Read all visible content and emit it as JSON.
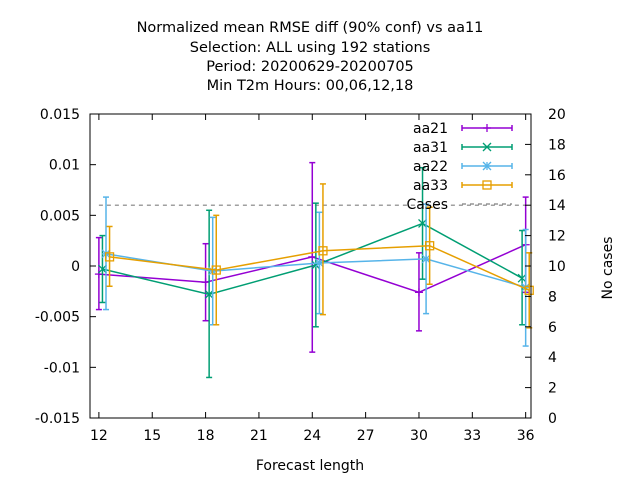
{
  "chart_data": {
    "type": "line",
    "title": [
      "Normalized mean RMSE diff (90% conf) vs aa11",
      "Selection: ALL using   192 stations",
      "Period: 20200629-20200705",
      "Min T2m   Hours:  00,06,12,18"
    ],
    "xlabel": "Forecast length",
    "ylabel": "",
    "y2label": "No cases",
    "xlim": [
      11.5,
      36.3
    ],
    "ylim": [
      -0.015,
      0.015
    ],
    "y2lim": [
      0,
      20
    ],
    "xticks": [
      12,
      15,
      18,
      21,
      24,
      27,
      30,
      33,
      36
    ],
    "xtick_labels": [
      "12",
      "15",
      "18",
      "21",
      "24",
      "27",
      "30",
      "33",
      "36"
    ],
    "yticks": [
      -0.015,
      -0.01,
      -0.005,
      0,
      0.005,
      0.01,
      0.015
    ],
    "ytick_labels": [
      "-0.015",
      "-0.01",
      "-0.005",
      "0",
      "0.005",
      "0.01",
      "0.015"
    ],
    "y2ticks": [
      0,
      2,
      4,
      6,
      8,
      10,
      12,
      14,
      16,
      18,
      20
    ],
    "y2tick_labels": [
      "0",
      "2",
      "4",
      "6",
      "8",
      "10",
      "12",
      "14",
      "16",
      "18",
      "20"
    ],
    "grid": false,
    "legend_position": "top-right",
    "series": [
      {
        "name": "aa21",
        "color": "#9400d3",
        "marker": "plus",
        "x": [
          12,
          18,
          24,
          30,
          36
        ],
        "y": [
          -0.0008,
          -0.0016,
          0.0009,
          -0.0026,
          0.0021
        ],
        "err_low": [
          -0.0043,
          -0.0054,
          -0.0085,
          -0.0064,
          -0.0026
        ],
        "err_high": [
          0.0028,
          0.0022,
          0.0102,
          0.0013,
          0.0068
        ]
      },
      {
        "name": "aa31",
        "color": "#009e73",
        "marker": "cross",
        "x": [
          12.2,
          18.2,
          24.2,
          30.2,
          35.8
        ],
        "y": [
          -0.0003,
          -0.0028,
          0.0001,
          0.0042,
          -0.0012
        ],
        "err_low": [
          -0.0036,
          -0.011,
          -0.006,
          -0.0013,
          -0.0058
        ],
        "err_high": [
          0.003,
          0.0055,
          0.0062,
          0.0097,
          0.0035
        ]
      },
      {
        "name": "aa22",
        "color": "#56b4e9",
        "marker": "star",
        "x": [
          12.4,
          18.4,
          24.4,
          30.4,
          36.0
        ],
        "y": [
          0.0012,
          -0.0005,
          0.0003,
          0.0007,
          -0.0021
        ],
        "err_low": [
          -0.0043,
          -0.0058,
          -0.0047,
          -0.0047,
          -0.0079
        ],
        "err_high": [
          0.0068,
          0.0048,
          0.0053,
          0.0061,
          0.0036
        ]
      },
      {
        "name": "aa33",
        "color": "#e69f00",
        "marker": "square",
        "x": [
          12.6,
          18.6,
          24.6,
          30.6,
          36.2
        ],
        "y": [
          0.0009,
          -0.0004,
          0.0015,
          0.002,
          -0.0024
        ],
        "err_low": [
          -0.002,
          -0.0058,
          -0.0048,
          -0.0018,
          -0.0061
        ],
        "err_high": [
          0.0039,
          0.005,
          0.0081,
          0.0058,
          0.0013
        ]
      }
    ],
    "cases": {
      "name": "Cases",
      "color": "#808080",
      "style": "dashed",
      "x": [
        12,
        18,
        24,
        30,
        36
      ],
      "y": [
        14,
        14,
        14,
        14,
        14
      ]
    }
  }
}
